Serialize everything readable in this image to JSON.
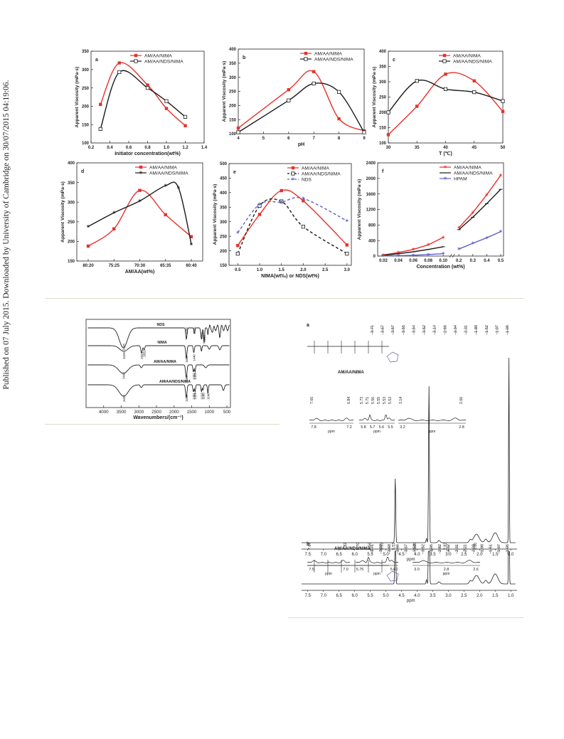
{
  "sidebar_text": "Published on 07 July 2015. Downloaded by University of Cambridge on 30/07/2015 04:19:06.",
  "colors": {
    "red": "#e8302a",
    "black": "#1a1a1a",
    "blue": "#6060c8",
    "rule": "#d9dcc6"
  },
  "chart_data": [
    {
      "type": "line",
      "panel": "a",
      "xlabel": "Initiator concentration(wt%)",
      "ylabel": "Apparent Viscosity (mPa·s)",
      "xlim": [
        0.2,
        1.4
      ],
      "ylim": [
        100,
        350
      ],
      "xticks": [
        0.2,
        0.4,
        0.6,
        0.8,
        1.0,
        1.2,
        1.4
      ],
      "xticklabels": [
        "0.2",
        "0.4",
        "0.6",
        "0.8",
        "1.0",
        "1.2",
        "1.4"
      ],
      "yticks": [
        100,
        150,
        200,
        250,
        300,
        350
      ],
      "yticklabels": [
        "100",
        "150",
        "200",
        "250",
        "300",
        "350"
      ],
      "series": [
        {
          "name": "AM/AA/NIMA",
          "x": [
            0.3,
            0.5,
            0.8,
            1.0,
            1.2
          ],
          "values": [
            205,
            318,
            258,
            194,
            147
          ]
        },
        {
          "name": "AM/AA/NDS/NIMA",
          "x": [
            0.3,
            0.5,
            0.8,
            1.0,
            1.2
          ],
          "values": [
            138,
            293,
            250,
            214,
            171
          ]
        }
      ]
    },
    {
      "type": "line",
      "panel": "b",
      "xlabel": "pH",
      "ylabel": "Apparent Viscosity (mPa·s)",
      "xlim": [
        4,
        9
      ],
      "ylim": [
        100,
        400
      ],
      "xticks": [
        4,
        5,
        6,
        7,
        8,
        9
      ],
      "xticklabels": [
        "4",
        "5",
        "6",
        "7",
        "8",
        "9"
      ],
      "yticks": [
        100,
        150,
        200,
        250,
        300,
        350,
        400
      ],
      "yticklabels": [
        "100",
        "150",
        "200",
        "250",
        "300",
        "350",
        "400"
      ],
      "series": [
        {
          "name": "AM/AA/NIMA",
          "x": [
            4,
            6,
            7,
            8,
            9
          ],
          "values": [
            120,
            256,
            320,
            153,
            110
          ]
        },
        {
          "name": "AM/AA/NDS/NIMA",
          "x": [
            4,
            6,
            7,
            8,
            9
          ],
          "values": [
            105,
            218,
            278,
            248,
            105
          ]
        }
      ]
    },
    {
      "type": "line",
      "panel": "c",
      "xlabel": "T (℃)",
      "ylabel": "Apparent Viscosity (mPa·s)",
      "xlim": [
        30,
        50
      ],
      "ylim": [
        100,
        400
      ],
      "xticks": [
        30,
        35,
        40,
        45,
        50
      ],
      "xticklabels": [
        "30",
        "35",
        "40",
        "45",
        "50"
      ],
      "yticks": [
        100,
        150,
        200,
        250,
        300,
        350,
        400
      ],
      "yticklabels": [
        "100",
        "150",
        "200",
        "250",
        "300",
        "350",
        "400"
      ],
      "series": [
        {
          "name": "AM/AA/NIMA",
          "x": [
            30,
            35,
            40,
            45,
            50
          ],
          "values": [
            127,
            220,
            325,
            303,
            203
          ]
        },
        {
          "name": "AM/AA/NDS/NIMA",
          "x": [
            30,
            35,
            40,
            45,
            50
          ],
          "values": [
            200,
            303,
            276,
            266,
            237
          ]
        }
      ]
    },
    {
      "type": "line",
      "panel": "d",
      "xlabel": "AM/AA(wt%)",
      "ylabel": "Apparent Viscosity (mPa·s)",
      "ylim": [
        150,
        400
      ],
      "categories": [
        "80:20",
        "75:25",
        "70:30",
        "65:35",
        "60:40"
      ],
      "yticks": [
        150,
        200,
        250,
        300,
        350,
        400
      ],
      "yticklabels": [
        "150",
        "200",
        "250",
        "300",
        "350",
        "400"
      ],
      "series": [
        {
          "name": "AM/AA/NIMA",
          "x": [
            0,
            1,
            2,
            3,
            4
          ],
          "values": [
            188,
            232,
            330,
            268,
            212
          ]
        },
        {
          "name": "AM/AA/NDS/NIMA",
          "x": [
            0,
            1,
            2,
            3,
            3.5,
            4
          ],
          "values": [
            238,
            273,
            303,
            342,
            337,
            193
          ]
        }
      ]
    },
    {
      "type": "line",
      "panel": "e",
      "xlabel": "NIMA(wt‰) or NDS(wt%)",
      "ylabel": "Apparent Viscosity (mPa·s)",
      "xlim": [
        0.3,
        3.1
      ],
      "ylim": [
        150,
        500
      ],
      "xticks": [
        0.5,
        1.0,
        1.5,
        2.0,
        2.5,
        3.0
      ],
      "xticklabels": [
        "0.5",
        "1.0",
        "1.5",
        "2.0",
        "2.5",
        "3.0"
      ],
      "yticks": [
        150,
        200,
        250,
        300,
        350,
        400,
        450,
        500
      ],
      "yticklabels": [
        "150",
        "200",
        "250",
        "300",
        "350",
        "400",
        "450",
        "500"
      ],
      "series": [
        {
          "name": "AM/AA/NIMA",
          "x": [
            0.5,
            1.0,
            1.5,
            2.0,
            3.0
          ],
          "values": [
            218,
            325,
            407,
            372,
            220
          ]
        },
        {
          "name": "AM/AA/NDS/NIMA",
          "x": [
            0.5,
            1.0,
            1.5,
            2.0,
            3.0
          ],
          "values": [
            190,
            355,
            370,
            283,
            190
          ]
        },
        {
          "name": "NDS",
          "x": [
            0.5,
            1.0,
            1.5,
            2.0,
            3.0
          ],
          "values": [
            262,
            360,
            368,
            380,
            303
          ]
        }
      ]
    },
    {
      "type": "line",
      "panel": "f",
      "xlabel": "Concentration (wt%)",
      "ylabel": "Apparent Viscosity (mPa·s)",
      "ylim": [
        0,
        2400
      ],
      "xticklabels": [
        "0.02",
        "0.04",
        "0.06",
        "0.08",
        "0.10",
        "0.2",
        "0.3",
        "0.4",
        "0.5"
      ],
      "yticks": [
        0,
        400,
        800,
        1200,
        1600,
        2000,
        2400
      ],
      "yticklabels": [
        "0",
        "400",
        "800",
        "1200",
        "1600",
        "2000",
        "2400"
      ],
      "series": [
        {
          "name": "AM/AA/NIMA",
          "x": [
            0.02,
            0.04,
            0.06,
            0.08,
            0.1,
            0.2,
            0.3,
            0.4,
            0.5
          ],
          "values": [
            30,
            90,
            170,
            290,
            480,
            730,
            1120,
            1580,
            2080
          ]
        },
        {
          "name": "AM/AA/NDS/NIMA",
          "x": [
            0.02,
            0.04,
            0.06,
            0.08,
            0.1,
            0.2,
            0.3,
            0.4,
            0.5
          ],
          "values": [
            20,
            60,
            110,
            170,
            240,
            680,
            1000,
            1350,
            1720
          ]
        },
        {
          "name": "HPAM",
          "x": [
            0.02,
            0.04,
            0.06,
            0.08,
            0.1,
            0.2,
            0.3,
            0.4,
            0.5
          ],
          "values": [
            5,
            10,
            20,
            40,
            60,
            180,
            330,
            470,
            630
          ]
        }
      ]
    },
    {
      "type": "line",
      "panel": "ftir",
      "xlabel": "Wavenumbers/(cm⁻¹)",
      "xlim": [
        4500,
        400
      ],
      "xticks": [
        4000,
        3500,
        3000,
        2500,
        2000,
        1500,
        1000,
        500
      ],
      "xticklabels": [
        "4000",
        "3500",
        "3000",
        "2500",
        "2000",
        "1500",
        "1000",
        "500"
      ],
      "series": [
        {
          "name": "NDS"
        },
        {
          "name": "NIMA"
        },
        {
          "name": "AM/AA/NIMA"
        },
        {
          "name": "AM/AA/NDS/NIMA"
        }
      ],
      "peak_labels": [
        "3444",
        "1650",
        "1426",
        "1223",
        "1149",
        "3426",
        "2923",
        "2851",
        "1652",
        "1440",
        "3442",
        "1654",
        "1451",
        "1405",
        "3432",
        "1654",
        "1451",
        "1405",
        "1223",
        "1180",
        "1040"
      ]
    },
    {
      "type": "line",
      "panel": "nmr",
      "xlabel": "ppm",
      "panels": [
        {
          "label": "a",
          "compound": "AM/AA/NIMA",
          "shift_labels": [
            "3.71",
            "3.67",
            "3.57",
            "3.55",
            "3.54",
            "3.52",
            "3.14",
            "2.66",
            "2.34",
            "2.31",
            "1.98",
            "1.52",
            "1.07",
            "1.06"
          ],
          "inset_shifts": [
            "7.66",
            "6.84",
            "5.73",
            "5.71",
            "5.56",
            "5.55",
            "5.53",
            "5.53",
            "3.14",
            "2.66"
          ],
          "inset_axis_labels": [
            [
              "7.8",
              "7.2"
            ],
            [
              "5.8",
              "5.7",
              "5.6",
              "5.5"
            ],
            [
              "3.2",
              "2.8"
            ]
          ],
          "axis_ticks": [
            "7.5",
            "7.0",
            "6.5",
            "6.0",
            "5.5",
            "5.0",
            "4.5",
            "4.0",
            "3.5",
            "3.0",
            "2.5",
            "2.0",
            "1.5",
            "1.0"
          ]
        },
        {
          "label": "b",
          "compound": "AM/AA/NDS/NIMA",
          "shift_labels": [
            "3.71",
            "3.69",
            "3.68",
            "3.66",
            "3.57",
            "3.53",
            "3.52",
            "3.05",
            "2.82",
            "2.32",
            "2.31",
            "2.21",
            "2.09",
            "1.98",
            "1.51",
            "1.07",
            "1.05"
          ],
          "inset_shifts": [
            "7.67",
            "6.82",
            "5.70",
            "5.56",
            "5.53",
            "5.53",
            "3.05",
            "2.82",
            "2.60"
          ],
          "inset_axis_labels": [
            [
              "7.5",
              "7.0"
            ],
            [
              "5.75",
              "5.60"
            ],
            [
              "3.0",
              "2.8",
              "2.6"
            ]
          ],
          "axis_ticks": [
            "7.5",
            "7.0",
            "6.5",
            "6.0",
            "5.5",
            "5.0",
            "4.5",
            "4.0",
            "3.5",
            "3.0",
            "2.5",
            "2.0",
            "1.5",
            "1.0"
          ]
        }
      ]
    }
  ]
}
